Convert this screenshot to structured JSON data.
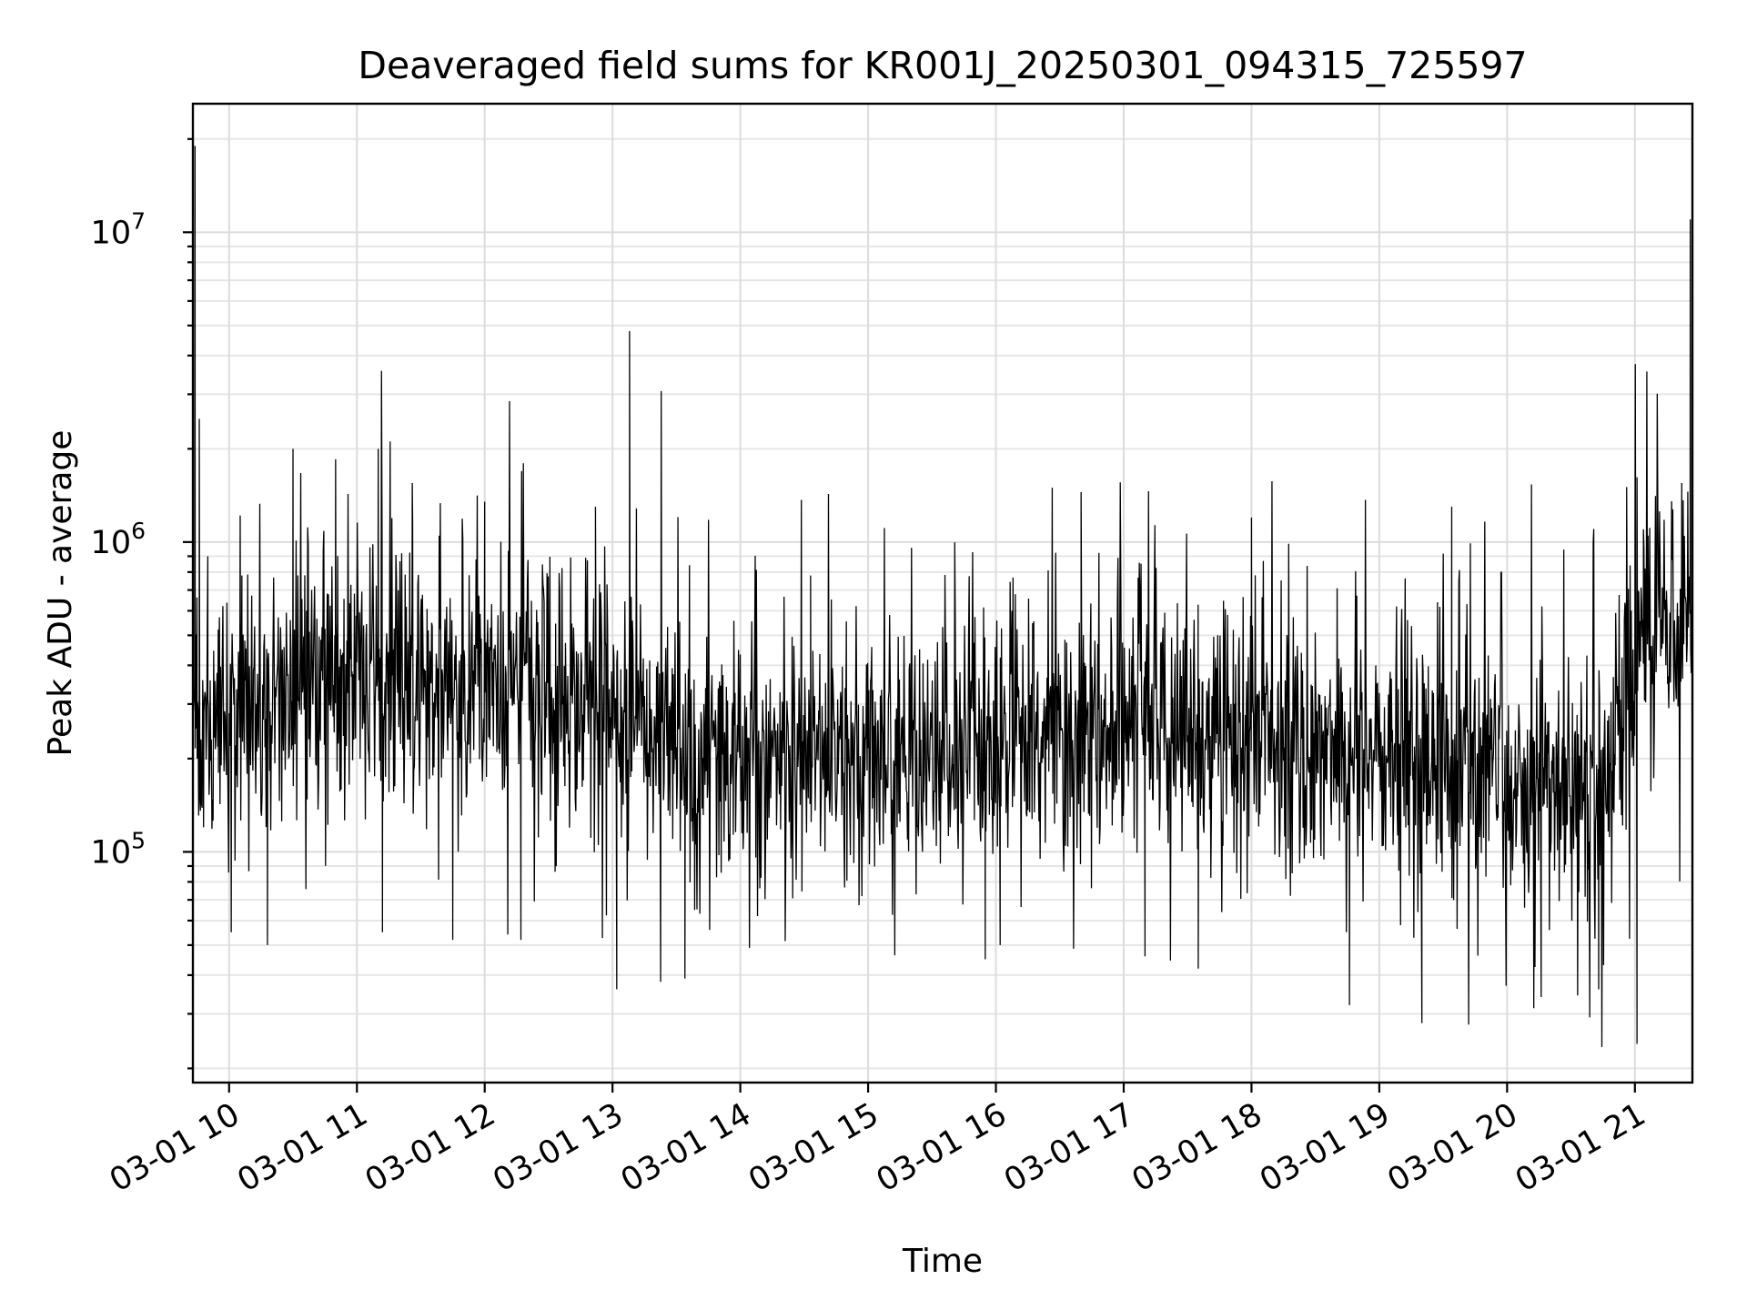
{
  "chart_data": {
    "type": "line",
    "title": "Deaveraged field sums for KR001J_20250301_094315_725597",
    "xlabel": "Time",
    "ylabel": "Peak ADU - average",
    "x_scale": "time",
    "y_scale": "log",
    "xlim": [
      "2025-03-01T09:43",
      "2025-03-01T21:27"
    ],
    "ylim": [
      18000,
      26000000
    ],
    "grid": true,
    "grid_minor": true,
    "legend": "none",
    "line_color": "#000000",
    "x_ticks": [
      {
        "time": "2025-03-01T10:00",
        "label": "03-01 10"
      },
      {
        "time": "2025-03-01T11:00",
        "label": "03-01 11"
      },
      {
        "time": "2025-03-01T12:00",
        "label": "03-01 12"
      },
      {
        "time": "2025-03-01T13:00",
        "label": "03-01 13"
      },
      {
        "time": "2025-03-01T14:00",
        "label": "03-01 14"
      },
      {
        "time": "2025-03-01T15:00",
        "label": "03-01 15"
      },
      {
        "time": "2025-03-01T16:00",
        "label": "03-01 16"
      },
      {
        "time": "2025-03-01T17:00",
        "label": "03-01 17"
      },
      {
        "time": "2025-03-01T18:00",
        "label": "03-01 18"
      },
      {
        "time": "2025-03-01T19:00",
        "label": "03-01 19"
      },
      {
        "time": "2025-03-01T20:00",
        "label": "03-01 20"
      },
      {
        "time": "2025-03-01T21:00",
        "label": "03-01 21"
      }
    ],
    "y_ticks": [
      {
        "value": 100000,
        "base": "10",
        "exp": "5"
      },
      {
        "value": 1000000,
        "base": "10",
        "exp": "6"
      },
      {
        "value": 10000000,
        "base": "10",
        "exp": "7"
      }
    ],
    "series": [
      {
        "values": [
          {
            "t": "2025-03-01T09:43",
            "y": 550000
          },
          {
            "t": "2025-03-01T09:44",
            "y": 19000000
          },
          {
            "t": "2025-03-01T09:45",
            "y": 200000
          },
          {
            "t": "2025-03-01T09:46",
            "y": 2500000
          },
          {
            "t": "2025-03-01T09:48",
            "y": 120000
          },
          {
            "t": "2025-03-01T09:50",
            "y": 900000
          },
          {
            "t": "2025-03-01T09:55",
            "y": 180000
          },
          {
            "t": "2025-03-01T10:01",
            "y": 55000
          },
          {
            "t": "2025-03-01T10:06",
            "y": 780000
          },
          {
            "t": "2025-03-01T10:18",
            "y": 50000
          },
          {
            "t": "2025-03-01T10:30",
            "y": 2000000
          },
          {
            "t": "2025-03-01T10:50",
            "y": 1850000
          },
          {
            "t": "2025-03-01T11:10",
            "y": 2000000
          },
          {
            "t": "2025-03-01T11:12",
            "y": 55000
          },
          {
            "t": "2025-03-01T11:26",
            "y": 1550000
          },
          {
            "t": "2025-03-01T11:45",
            "y": 52000
          },
          {
            "t": "2025-03-01T12:00",
            "y": 1350000
          },
          {
            "t": "2025-03-01T12:17",
            "y": 52000
          },
          {
            "t": "2025-03-01T12:52",
            "y": 1300000
          },
          {
            "t": "2025-03-01T13:02",
            "y": 36000
          },
          {
            "t": "2025-03-01T13:08",
            "y": 4800000
          },
          {
            "t": "2025-03-01T13:34",
            "y": 39000
          },
          {
            "t": "2025-03-01T14:33",
            "y": 780000
          },
          {
            "t": "2025-03-01T15:55",
            "y": 45000
          },
          {
            "t": "2025-03-01T16:02",
            "y": 50000
          },
          {
            "t": "2025-03-01T16:40",
            "y": 1450000
          },
          {
            "t": "2025-03-01T17:10",
            "y": 46000
          },
          {
            "t": "2025-03-01T17:35",
            "y": 42000
          },
          {
            "t": "2025-03-01T18:00",
            "y": 1200000
          },
          {
            "t": "2025-03-01T18:46",
            "y": 32000
          },
          {
            "t": "2025-03-01T19:20",
            "y": 28000
          },
          {
            "t": "2025-03-01T19:34",
            "y": 1300000
          },
          {
            "t": "2025-03-01T20:16",
            "y": 34000
          },
          {
            "t": "2025-03-01T20:43",
            "y": 36000
          },
          {
            "t": "2025-03-01T21:01",
            "y": 24000
          },
          {
            "t": "2025-03-01T21:04",
            "y": 1100000
          },
          {
            "t": "2025-03-01T21:22",
            "y": 1550000
          },
          {
            "t": "2025-03-01T21:26",
            "y": 11000000
          }
        ]
      }
    ]
  }
}
